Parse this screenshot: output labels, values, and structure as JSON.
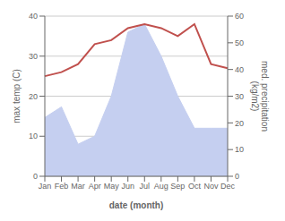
{
  "chart_data": {
    "type": "line",
    "xlabel": "date (month)",
    "ylabel": "max temp (C)",
    "y2label": "med. precipitation\n(kg/m2)",
    "categories": [
      "Jan",
      "Feb",
      "Mar",
      "Apr",
      "May",
      "Jun",
      "Jul",
      "Aug",
      "Sep",
      "Oct",
      "Nov",
      "Dec"
    ],
    "series": [
      {
        "type": "area",
        "axis": "y2",
        "color": "#c5cff0",
        "values": [
          22,
          26,
          12,
          15,
          30,
          54,
          57,
          45,
          30,
          18,
          18,
          18
        ]
      },
      {
        "type": "line",
        "color": "#c0504d",
        "values": [
          25,
          26,
          28,
          33,
          34,
          37,
          38,
          37,
          35,
          38,
          28,
          27
        ]
      }
    ],
    "ylim": [
      0,
      40
    ],
    "yticks": [
      0,
      10,
      20,
      30,
      40
    ],
    "y2lim": [
      0,
      60
    ],
    "y2ticks": [
      0,
      10,
      20,
      30,
      40,
      50,
      60
    ],
    "grid": "y"
  }
}
